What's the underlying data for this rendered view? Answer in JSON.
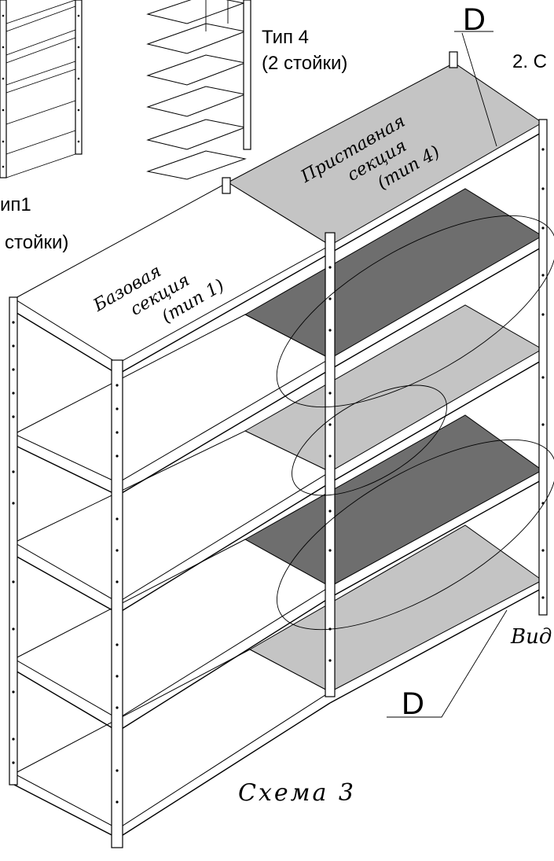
{
  "labels": {
    "type4": "Тип 4",
    "type4_posts": "(2 стойки)",
    "type1": "ип1",
    "type1_posts": "стойки)",
    "item2": "2. С",
    "marker_top": "D",
    "marker_bottom": "D",
    "view": "Вид",
    "base_line1": "Базовая",
    "base_line2": "секция",
    "base_line3": "(тип 1)",
    "add_line1": "Приставная",
    "add_line2": "секция",
    "add_line3": "(тип 4)",
    "scheme": "Схема 3"
  },
  "colors": {
    "light_shelf": "#c4c4c4",
    "dark_shelf": "#6e6e6e",
    "line": "#000000",
    "background": "#ffffff"
  }
}
